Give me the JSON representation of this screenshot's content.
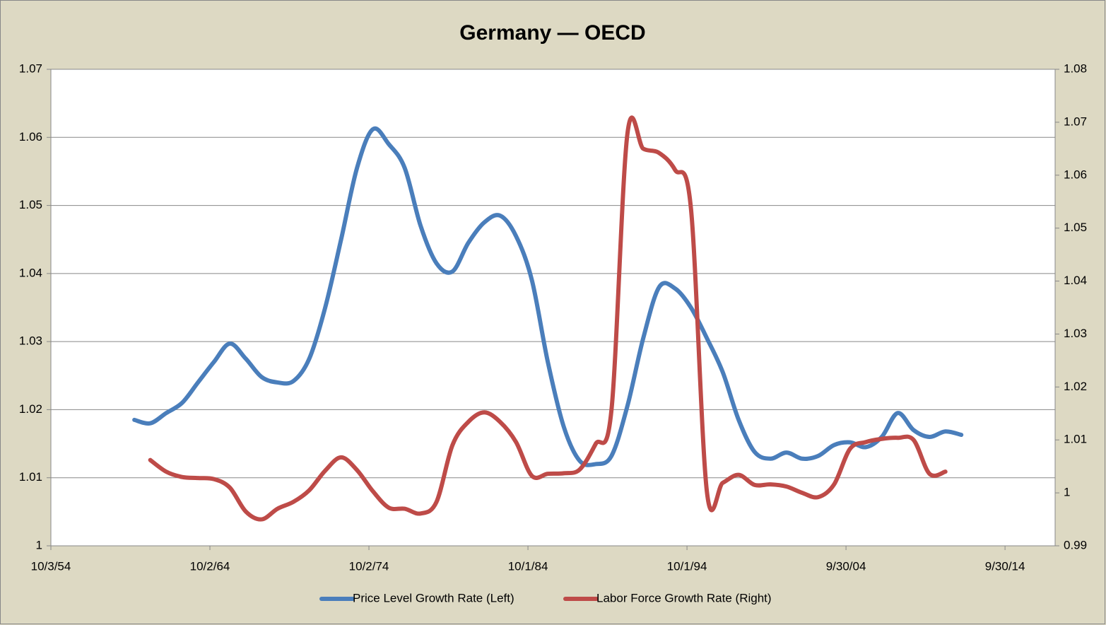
{
  "chart_data": {
    "type": "line",
    "title": "Germany — OECD",
    "x": [
      1960,
      1961,
      1962,
      1963,
      1964,
      1965,
      1966,
      1967,
      1968,
      1969,
      1970,
      1971,
      1972,
      1973,
      1974,
      1975,
      1976,
      1977,
      1978,
      1979,
      1980,
      1981,
      1982,
      1983,
      1984,
      1985,
      1986,
      1987,
      1988,
      1989,
      1990,
      1991,
      1992,
      1993,
      1994,
      1995,
      1996,
      1997,
      1998,
      1999,
      2000,
      2001,
      2002,
      2003,
      2004,
      2005,
      2006,
      2007,
      2008,
      2009,
      2010,
      2011,
      2012
    ],
    "series": [
      {
        "name": "Price Level Growth Rate (Left)",
        "color": "#4a7ebb",
        "axis": "y",
        "values": [
          1.0185,
          1.018,
          1.0195,
          1.021,
          1.024,
          1.027,
          1.0297,
          1.0275,
          1.0248,
          1.024,
          1.0242,
          1.0275,
          1.035,
          1.045,
          1.0555,
          1.0612,
          1.059,
          1.0555,
          1.047,
          1.0415,
          1.0403,
          1.0445,
          1.0475,
          1.0485,
          1.0455,
          1.039,
          1.027,
          1.0175,
          1.0125,
          1.012,
          1.0132,
          1.0205,
          1.0305,
          1.038,
          1.0378,
          1.035,
          1.0305,
          1.0255,
          1.0185,
          1.0138,
          1.0128,
          1.0137,
          1.0128,
          1.0132,
          1.0148,
          1.0152,
          1.0145,
          1.016,
          1.0195,
          1.017,
          1.016,
          1.0168,
          1.0163
        ]
      },
      {
        "name": "Labor Force Growth Rate (Right)",
        "color": "#be4b48",
        "axis": "y2",
        "values": [
          null,
          1.0062,
          1.004,
          1.003,
          1.0028,
          1.0026,
          1.001,
          0.9965,
          0.995,
          0.997,
          0.9983,
          1.0005,
          1.0042,
          1.0067,
          1.0043,
          1.0003,
          0.9972,
          0.997,
          0.9961,
          0.9983,
          1.009,
          1.0134,
          1.0152,
          1.0134,
          1.0096,
          1.0032,
          1.0036,
          1.0037,
          1.0044,
          1.0092,
          1.0156,
          1.0677,
          1.065,
          1.0642,
          1.061,
          1.0537,
          1.0003,
          1.0019,
          1.0034,
          1.0015,
          1.0016,
          1.0012,
          1.0,
          0.9992,
          1.0016,
          1.0083,
          1.0096,
          1.0102,
          1.0104,
          1.01,
          1.0036,
          1.004,
          null
        ]
      }
    ],
    "xlim": [
      1954.75,
      2017.9
    ],
    "xticks": [
      {
        "value": 1954.75,
        "label": "10/3/54"
      },
      {
        "value": 1964.75,
        "label": "10/2/64"
      },
      {
        "value": 1974.75,
        "label": "10/2/74"
      },
      {
        "value": 1984.75,
        "label": "10/1/84"
      },
      {
        "value": 1994.75,
        "label": "10/1/94"
      },
      {
        "value": 2004.75,
        "label": "9/30/04"
      },
      {
        "value": 2014.75,
        "label": "9/30/14"
      }
    ],
    "ylim": [
      1,
      1.07
    ],
    "yticks": [
      1,
      1.01,
      1.02,
      1.03,
      1.04,
      1.05,
      1.06,
      1.07
    ],
    "y2lim": [
      0.99,
      1.08
    ],
    "y2ticks": [
      0.99,
      1,
      1.01,
      1.02,
      1.03,
      1.04,
      1.05,
      1.06,
      1.07,
      1.08
    ],
    "grid": true,
    "legend": "bottom"
  }
}
